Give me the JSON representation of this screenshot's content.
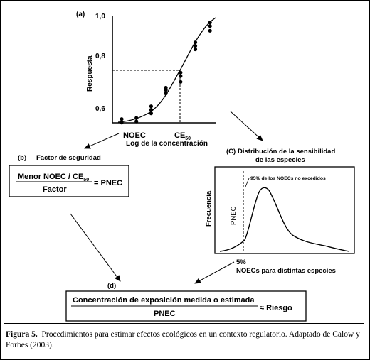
{
  "panel_a": {
    "label": "(a)",
    "y_axis_title": "Respuesta",
    "y_ticks": [
      "1,0",
      "0,8",
      "0,6"
    ],
    "x_axis_title": "Log de la concentración",
    "noec_label": "NOEC",
    "ce50_label": "CE",
    "ce50_sub": "50"
  },
  "panel_b": {
    "label": "(b)",
    "title": "Factor de seguridad",
    "numerator": "Menor NOEC / CE",
    "numerator_sub": "50",
    "denominator": "Factor",
    "result": "= PNEC"
  },
  "panel_c": {
    "label": "(C)",
    "title_line1": "Distribución de la sensibilidad",
    "title_line2": "de las especies",
    "y_axis_title": "Frecuencia",
    "pnec_label": "PNEC",
    "note": "95% de los NOECs no excedidos",
    "percent": "5%",
    "x_axis_title": "NOECs para distintas especies"
  },
  "panel_d": {
    "label": "(d)",
    "numerator": "Concentración de exposición medida o estimada",
    "denominator": "PNEC",
    "result": "≈ Riesgo"
  },
  "caption": {
    "label": "Figura 5.",
    "text": "Procedimientos para estimar efectos ecológicos en un contexto regulatorio. Adaptado de Calow y Forbes (2003)."
  },
  "chart_data": [
    {
      "type": "scatter",
      "title": "(a)",
      "xlabel": "Log de la concentración",
      "ylabel": "Respuesta",
      "yticks": [
        "1,0",
        "0,8",
        "0,6"
      ],
      "ylim": [
        0.55,
        1.02
      ],
      "series": [
        {
          "points": [
            {
              "x": 1,
              "y": 0.54
            },
            {
              "x": 1,
              "y": 0.555
            },
            {
              "x": 2,
              "y": 0.545
            },
            {
              "x": 2,
              "y": 0.56
            },
            {
              "x": 3,
              "y": 0.58
            },
            {
              "x": 3,
              "y": 0.595
            },
            {
              "x": 3,
              "y": 0.61
            },
            {
              "x": 4,
              "y": 0.665
            },
            {
              "x": 4,
              "y": 0.68
            },
            {
              "x": 4,
              "y": 0.69
            },
            {
              "x": 5,
              "y": 0.715
            },
            {
              "x": 5,
              "y": 0.74
            },
            {
              "x": 5,
              "y": 0.755
            },
            {
              "x": 6,
              "y": 0.855
            },
            {
              "x": 6,
              "y": 0.87
            },
            {
              "x": 6,
              "y": 0.885
            },
            {
              "x": 7,
              "y": 0.935
            },
            {
              "x": 7,
              "y": 0.955
            },
            {
              "x": 7,
              "y": 0.97
            }
          ]
        }
      ]
    },
    {
      "type": "area",
      "title": "(C) Distribución de la sensibilidad de las especies",
      "xlabel": "NOECs para distintas especies",
      "ylabel": "Frecuencia",
      "series": [
        {
          "points": [
            {
              "x": 0,
              "y": 0.02
            },
            {
              "x": 1,
              "y": 0.05
            },
            {
              "x": 2,
              "y": 0.12
            },
            {
              "x": 3,
              "y": 0.55
            },
            {
              "x": 4,
              "y": 0.95
            },
            {
              "x": 5,
              "y": 0.8
            },
            {
              "x": 6,
              "y": 0.5
            },
            {
              "x": 7,
              "y": 0.28
            },
            {
              "x": 8,
              "y": 0.18
            },
            {
              "x": 9,
              "y": 0.08
            },
            {
              "x": 10,
              "y": 0.02
            }
          ]
        }
      ]
    }
  ]
}
